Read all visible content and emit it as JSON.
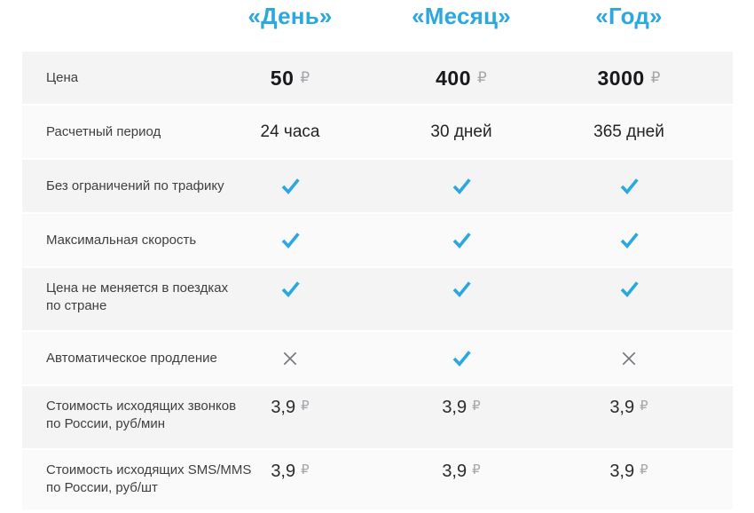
{
  "header": {
    "columns": [
      "«День»",
      "«Месяц»",
      "«Год»"
    ]
  },
  "rows": [
    {
      "label": "Цена",
      "type": "price",
      "values": [
        "50",
        "400",
        "3000"
      ],
      "currency": "₽"
    },
    {
      "label": "Расчетный период",
      "type": "text",
      "values": [
        "24 часа",
        "30 дней",
        "365 дней"
      ]
    },
    {
      "label": "Без ограничений по трафику",
      "type": "mark",
      "values": [
        "check",
        "check",
        "check"
      ]
    },
    {
      "label": "Максимальная скорость",
      "type": "mark",
      "values": [
        "check",
        "check",
        "check"
      ]
    },
    {
      "label": "Цена не меняется в поездках\nпо стране",
      "type": "mark",
      "values": [
        "check",
        "check",
        "check"
      ]
    },
    {
      "label": "Автоматическое продление",
      "type": "mark",
      "values": [
        "cross",
        "check",
        "cross"
      ]
    },
    {
      "label": "Стоимость исходящих звонков\nпо России, руб/мин",
      "type": "price-small",
      "values": [
        "3,9",
        "3,9",
        "3,9"
      ],
      "currency": "₽"
    },
    {
      "label": "Стоимость исходящих SMS/MMS\nпо России, руб/шт",
      "type": "price-small",
      "values": [
        "3,9",
        "3,9",
        "3,9"
      ],
      "currency": "₽"
    }
  ],
  "colors": {
    "accent_blue": "#2ba8df",
    "cross_gray": "#75757b",
    "row_shade_dark": "#f4f4f5",
    "row_shade_light": "#fafafa",
    "ruble_gray": "#a6a6ab"
  }
}
